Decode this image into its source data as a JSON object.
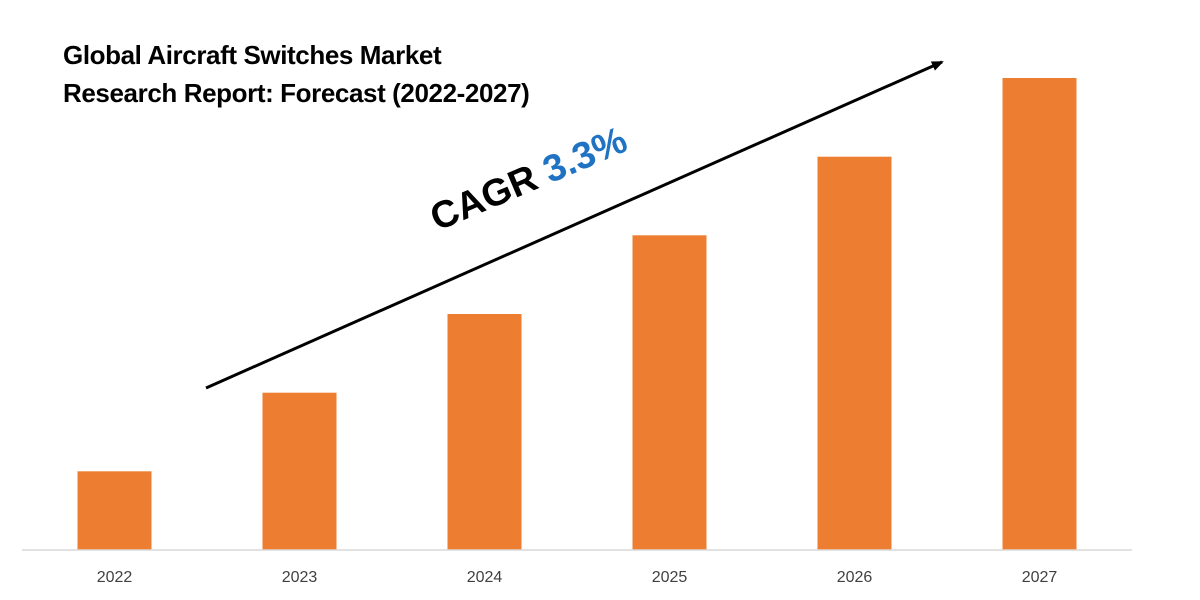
{
  "chart_data": {
    "type": "bar",
    "title_lines": [
      "Global Aircraft Switches Market",
      "Research Report: Forecast (2022-2027)"
    ],
    "categories": [
      "2022",
      "2023",
      "2024",
      "2025",
      "2026",
      "2027"
    ],
    "values": [
      1.0,
      2.0,
      3.0,
      4.0,
      5.0,
      6.0
    ],
    "ylim": [
      0,
      6.0
    ],
    "xlabel": "",
    "ylabel": "",
    "grid": false,
    "annotation": {
      "prefix": "CAGR",
      "value": "3.3%"
    },
    "colors": {
      "bar": "#ed7d31",
      "axis": "#d9d9d9",
      "tick_text": "#404040",
      "arrow": "#000000",
      "cagr_value": "#1f73c2"
    }
  }
}
